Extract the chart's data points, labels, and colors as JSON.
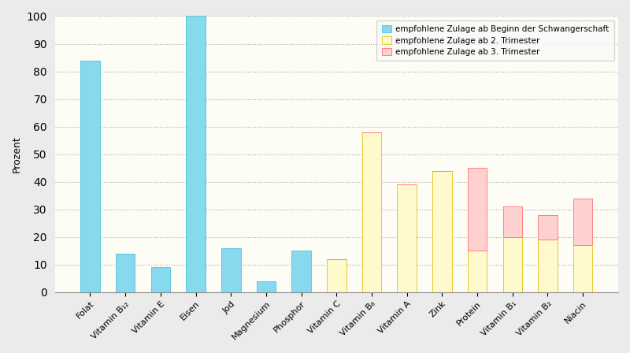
{
  "categories": [
    "Folat",
    "Vitamin B₁₂",
    "Vitamin E",
    "Eisen",
    "Jod",
    "Magnesium",
    "Phosphor",
    "Vitamin C",
    "Vitamin B₆",
    "Vitamin A",
    "Zink",
    "Protein",
    "Vitamin B₁",
    "Vitamin B₂",
    "Niacin"
  ],
  "blue_values": [
    84,
    14,
    9,
    100,
    16,
    4,
    15,
    0,
    0,
    0,
    0,
    0,
    0,
    0,
    0
  ],
  "yellow_values": [
    0,
    0,
    0,
    0,
    0,
    0,
    0,
    12,
    58,
    39,
    44,
    15,
    20,
    19,
    17
  ],
  "red_values": [
    0,
    0,
    0,
    0,
    0,
    0,
    0,
    0,
    0,
    0,
    0,
    30,
    11,
    9,
    17
  ],
  "color_blue": "#87DAEE",
  "color_yellow": "#FFFACC",
  "color_red": "#FFD0D0",
  "color_blue_edge": "#5BC8E0",
  "color_yellow_edge": "#E8C830",
  "color_red_edge": "#FF8080",
  "ylabel": "Prozent",
  "ylim": [
    0,
    100
  ],
  "yticks": [
    0,
    10,
    20,
    30,
    40,
    50,
    60,
    70,
    80,
    90,
    100
  ],
  "legend_labels": [
    "empfohlene Zulage ab Beginn der Schwangerschaft",
    "empfohlene Zulage ab 2. Trimester",
    "empfohlene Zulage ab 3. Trimester"
  ],
  "bg_color": "#EBEBEB",
  "plot_bg_color": "#FDFDF5"
}
